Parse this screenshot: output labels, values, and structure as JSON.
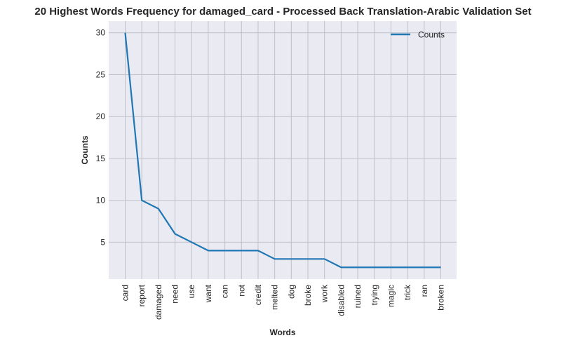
{
  "chart_data": {
    "type": "line",
    "title": "20 Highest Words Frequency for damaged_card - Processed Back Translation-Arabic Validation Set",
    "xlabel": "Words",
    "ylabel": "Counts",
    "categories": [
      "card",
      "report",
      "damaged",
      "need",
      "use",
      "want",
      "can",
      "not",
      "credit",
      "melted",
      "dog",
      "broke",
      "work",
      "disabled",
      "ruined",
      "trying",
      "magic",
      "trick",
      "ran",
      "broken"
    ],
    "series": [
      {
        "name": "Counts",
        "values": [
          30,
          10,
          9,
          6,
          5,
          4,
          4,
          4,
          4,
          3,
          3,
          3,
          3,
          2,
          2,
          2,
          2,
          2,
          2,
          2
        ]
      }
    ],
    "yticks": [
      5,
      10,
      15,
      20,
      25,
      30
    ],
    "ylim": [
      0.6,
      31.4
    ],
    "grid": true,
    "legend": "top-right",
    "line_color": "#1f77b4",
    "plot_bg": "#eaeaf2",
    "grid_color": "#c0c0c8"
  }
}
